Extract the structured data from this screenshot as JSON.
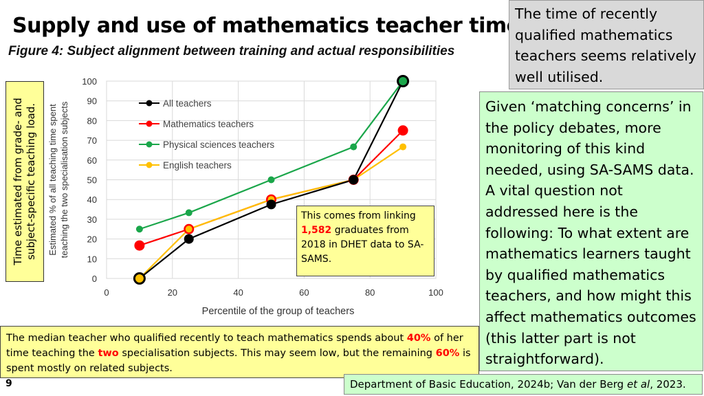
{
  "slide": {
    "title": "Supply and use of mathematics teacher time",
    "figure_caption": "Figure 4: Subject alignment between training and actual responsibilities",
    "page_number": "9"
  },
  "top_right_box": {
    "text": "The time of recently qualified mathematics teachers seems relatively well utilised."
  },
  "green_box": {
    "text": "Given ‘matching concerns’ in the policy debates, more monitoring of this kind needed, using SA-SAMS data. A vital question not addressed here is the following: To what extent are mathematics learners taught by qualified mathematics teachers, and how might this affect mathematics outcomes (this latter part is not straightforward)."
  },
  "side_label": {
    "text": "Time estimated from grade- and subject-specific teaching load."
  },
  "callout": {
    "part1": "This comes from linking ",
    "highlight": "1,582",
    "part2": " graduates from 2018 in DHET data to SA-SAMS."
  },
  "bottom_box": {
    "part1": "The median teacher who qualified recently to teach mathematics spends about ",
    "highlight1": "40%",
    "part2": " of her time teaching the ",
    "highlight2": "two",
    "part3": " specialisation subjects. This may seem low, but the remaining ",
    "highlight3": "60%",
    "part4": " is spent mostly on related subjects."
  },
  "source": {
    "part1": "Department of Basic Education, 2024b; Van der Berg ",
    "italic": "et al",
    "part2": ", 2023."
  },
  "colors": {
    "highlight_red": "#ff0000",
    "yellow_box": "#ffff99",
    "green_box": "#ccffcc",
    "grey_box": "#d9d9d9"
  },
  "chart_data": {
    "type": "line",
    "xlabel": "Percentile of the group of teachers",
    "ylabel": "Estimated % of all teaching time spent teaching the two specialisation subjects",
    "xlim": [
      0,
      100
    ],
    "ylim": [
      0,
      100
    ],
    "x_ticks": [
      0,
      20,
      40,
      60,
      80,
      100
    ],
    "y_ticks": [
      0,
      10,
      20,
      30,
      40,
      50,
      60,
      70,
      80,
      90,
      100
    ],
    "grid": true,
    "legend_position": "top-left",
    "x": [
      10,
      25,
      50,
      75,
      90
    ],
    "series": [
      {
        "name": "All teachers",
        "color": "#000000",
        "values": [
          0,
          20,
          37.5,
          50,
          100
        ]
      },
      {
        "name": "Mathematics teachers",
        "color": "#ff0000",
        "values": [
          16.7,
          25,
          40,
          50,
          75
        ]
      },
      {
        "name": "Physical sciences teachers",
        "color": "#1aa64a",
        "values": [
          25,
          33.3,
          50,
          66.7,
          100
        ]
      },
      {
        "name": "English teachers",
        "color": "#ffc000",
        "values": [
          0,
          25,
          40,
          50,
          66.7
        ]
      }
    ]
  }
}
